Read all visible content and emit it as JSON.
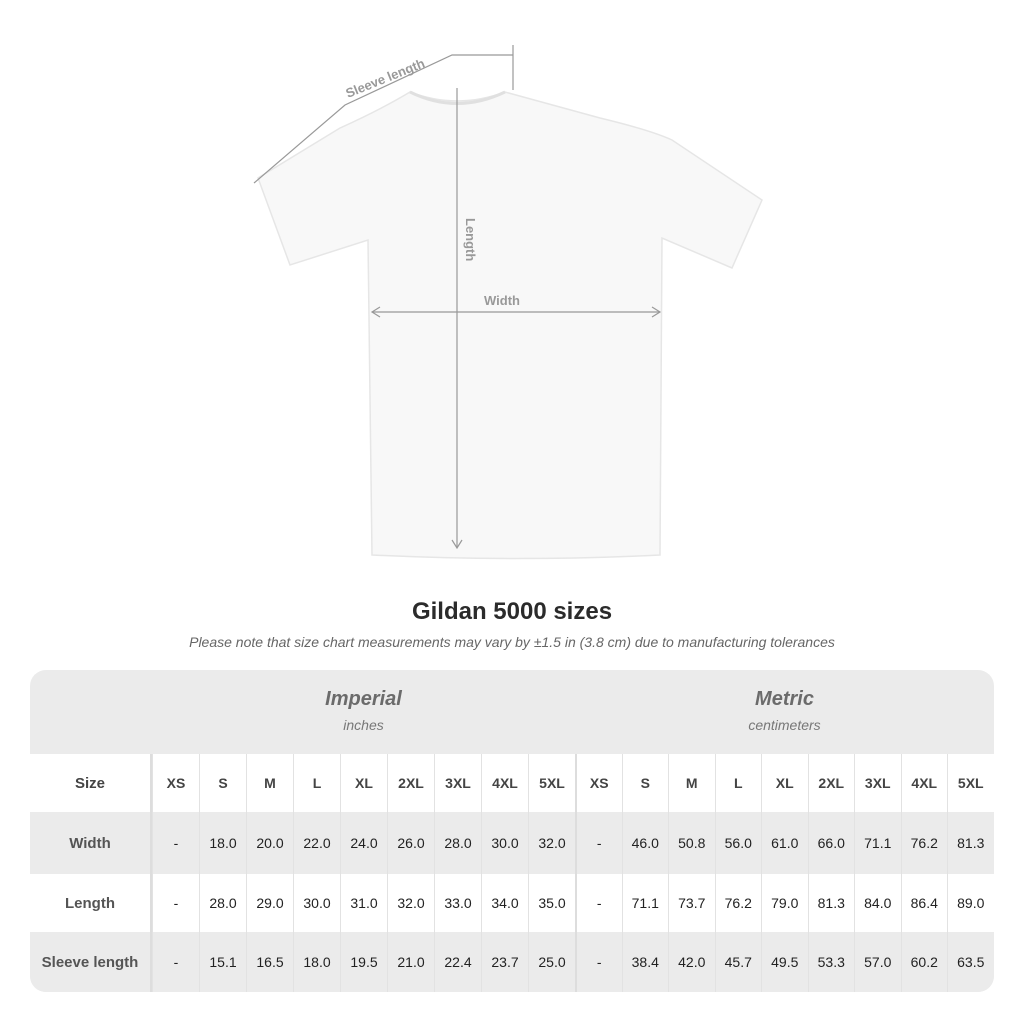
{
  "diagram": {
    "sleeve_label": "Sleeve length",
    "length_label": "Length",
    "width_label": "Width"
  },
  "title": "Gildan 5000 sizes",
  "note": "Please note that size chart measurements may vary by ±1.5 in (3.8 cm) due to manufacturing tolerances",
  "table": {
    "imperial": {
      "title": "Imperial",
      "unit": "inches"
    },
    "metric": {
      "title": "Metric",
      "unit": "centimeters"
    },
    "size_label": "Size",
    "sizes": [
      "XS",
      "S",
      "M",
      "L",
      "XL",
      "2XL",
      "3XL",
      "4XL",
      "5XL"
    ],
    "rows": [
      {
        "label": "Width",
        "imperial": [
          "-",
          "18.0",
          "20.0",
          "22.0",
          "24.0",
          "26.0",
          "28.0",
          "30.0",
          "32.0"
        ],
        "metric": [
          "-",
          "46.0",
          "50.8",
          "56.0",
          "61.0",
          "66.0",
          "71.1",
          "76.2",
          "81.3"
        ]
      },
      {
        "label": "Length",
        "imperial": [
          "-",
          "28.0",
          "29.0",
          "30.0",
          "31.0",
          "32.0",
          "33.0",
          "34.0",
          "35.0"
        ],
        "metric": [
          "-",
          "71.1",
          "73.7",
          "76.2",
          "79.0",
          "81.3",
          "84.0",
          "86.4",
          "89.0"
        ]
      },
      {
        "label": "Sleeve length",
        "imperial": [
          "-",
          "15.1",
          "16.5",
          "18.0",
          "19.5",
          "21.0",
          "22.4",
          "23.7",
          "25.0"
        ],
        "metric": [
          "-",
          "38.4",
          "42.0",
          "45.7",
          "49.5",
          "53.3",
          "57.0",
          "60.2",
          "63.5"
        ]
      }
    ]
  }
}
